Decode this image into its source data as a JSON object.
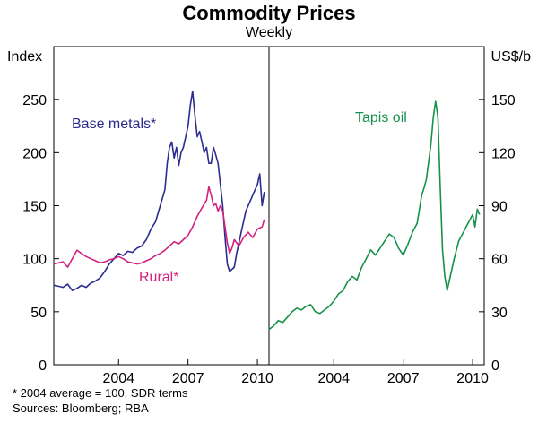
{
  "title": "Commodity Prices",
  "subtitle": "Weekly",
  "footnotes": [
    "*  2004 average = 100, SDR terms",
    "Sources: Bloomberg; RBA"
  ],
  "colors": {
    "base_metals": "#2b2c8f",
    "rural": "#d1237f",
    "tapis": "#16924a",
    "frame": "#000000"
  },
  "chart_data": [
    {
      "type": "line",
      "ylabel": "Index",
      "ylim": [
        0,
        300
      ],
      "yticks": [
        0,
        50,
        100,
        150,
        200,
        250
      ],
      "xlim": [
        2001.2,
        2010.5
      ],
      "xticks": [
        2004,
        2007,
        2010
      ],
      "grid": false,
      "series": [
        {
          "name": "Base metals*",
          "color": "#2b2c8f",
          "x": [
            2001.2,
            2001.4,
            2001.6,
            2001.8,
            2002.0,
            2002.2,
            2002.4,
            2002.6,
            2002.8,
            2003.0,
            2003.2,
            2003.4,
            2003.6,
            2003.8,
            2004.0,
            2004.2,
            2004.4,
            2004.6,
            2004.8,
            2005.0,
            2005.2,
            2005.4,
            2005.6,
            2005.8,
            2006.0,
            2006.1,
            2006.2,
            2006.3,
            2006.4,
            2006.5,
            2006.6,
            2006.7,
            2006.8,
            2006.9,
            2007.0,
            2007.1,
            2007.2,
            2007.3,
            2007.4,
            2007.5,
            2007.6,
            2007.7,
            2007.8,
            2007.9,
            2008.0,
            2008.1,
            2008.2,
            2008.3,
            2008.4,
            2008.5,
            2008.6,
            2008.7,
            2008.8,
            2008.9,
            2009.0,
            2009.1,
            2009.2,
            2009.3,
            2009.4,
            2009.5,
            2009.6,
            2009.7,
            2009.8,
            2009.9,
            2010.0,
            2010.1,
            2010.2,
            2010.3
          ],
          "values": [
            75,
            74,
            73,
            76,
            70,
            72,
            75,
            73,
            77,
            79,
            82,
            88,
            95,
            100,
            105,
            103,
            107,
            106,
            110,
            112,
            118,
            128,
            135,
            150,
            165,
            190,
            205,
            210,
            195,
            205,
            188,
            200,
            205,
            215,
            225,
            245,
            258,
            235,
            215,
            220,
            210,
            200,
            205,
            190,
            190,
            205,
            198,
            190,
            170,
            150,
            120,
            95,
            88,
            90,
            92,
            105,
            115,
            125,
            135,
            145,
            150,
            155,
            160,
            165,
            170,
            180,
            150,
            163
          ]
        },
        {
          "name": "Rural*",
          "color": "#d1237f",
          "x": [
            2001.2,
            2001.4,
            2001.6,
            2001.8,
            2002.0,
            2002.2,
            2002.4,
            2002.6,
            2002.8,
            2003.0,
            2003.2,
            2003.4,
            2003.6,
            2003.8,
            2004.0,
            2004.2,
            2004.4,
            2004.6,
            2004.8,
            2005.0,
            2005.2,
            2005.4,
            2005.6,
            2005.8,
            2006.0,
            2006.2,
            2006.4,
            2006.6,
            2006.8,
            2007.0,
            2007.2,
            2007.4,
            2007.6,
            2007.8,
            2007.9,
            2008.0,
            2008.1,
            2008.2,
            2008.3,
            2008.4,
            2008.5,
            2008.6,
            2008.7,
            2008.8,
            2008.9,
            2009.0,
            2009.2,
            2009.4,
            2009.6,
            2009.8,
            2010.0,
            2010.2,
            2010.3
          ],
          "values": [
            95,
            96,
            97,
            92,
            100,
            108,
            105,
            102,
            100,
            98,
            96,
            97,
            99,
            100,
            102,
            100,
            97,
            96,
            95,
            96,
            98,
            100,
            103,
            105,
            108,
            112,
            116,
            114,
            118,
            122,
            130,
            140,
            148,
            155,
            168,
            160,
            150,
            152,
            145,
            150,
            145,
            130,
            115,
            105,
            110,
            118,
            112,
            120,
            125,
            120,
            128,
            130,
            137
          ]
        }
      ],
      "annotations": [
        "Base metals*",
        "Rural*"
      ]
    },
    {
      "type": "line",
      "ylabel": "US$/b",
      "ylim": [
        0,
        180
      ],
      "yticks": [
        0,
        30,
        60,
        90,
        120,
        150
      ],
      "xlim": [
        2001.2,
        2010.5
      ],
      "xticks": [
        2004,
        2007,
        2010
      ],
      "grid": false,
      "series": [
        {
          "name": "Tapis oil",
          "color": "#16924a",
          "x": [
            2001.2,
            2001.4,
            2001.6,
            2001.8,
            2002.0,
            2002.2,
            2002.4,
            2002.6,
            2002.8,
            2003.0,
            2003.2,
            2003.4,
            2003.6,
            2003.8,
            2004.0,
            2004.2,
            2004.4,
            2004.6,
            2004.8,
            2005.0,
            2005.2,
            2005.4,
            2005.6,
            2005.8,
            2006.0,
            2006.2,
            2006.4,
            2006.6,
            2006.8,
            2007.0,
            2007.2,
            2007.4,
            2007.6,
            2007.8,
            2007.9,
            2008.0,
            2008.1,
            2008.2,
            2008.3,
            2008.4,
            2008.5,
            2008.6,
            2008.7,
            2008.8,
            2008.9,
            2009.0,
            2009.2,
            2009.4,
            2009.6,
            2009.8,
            2010.0,
            2010.1,
            2010.2,
            2010.3
          ],
          "values": [
            20,
            22,
            25,
            24,
            27,
            30,
            32,
            31,
            33,
            34,
            30,
            29,
            31,
            33,
            36,
            40,
            42,
            47,
            50,
            48,
            55,
            60,
            65,
            62,
            66,
            70,
            74,
            72,
            66,
            62,
            68,
            75,
            80,
            96,
            100,
            105,
            115,
            125,
            140,
            149,
            140,
            100,
            65,
            50,
            42,
            48,
            60,
            70,
            75,
            80,
            85,
            78,
            88,
            85
          ]
        }
      ],
      "annotations": [
        "Tapis oil"
      ]
    }
  ]
}
